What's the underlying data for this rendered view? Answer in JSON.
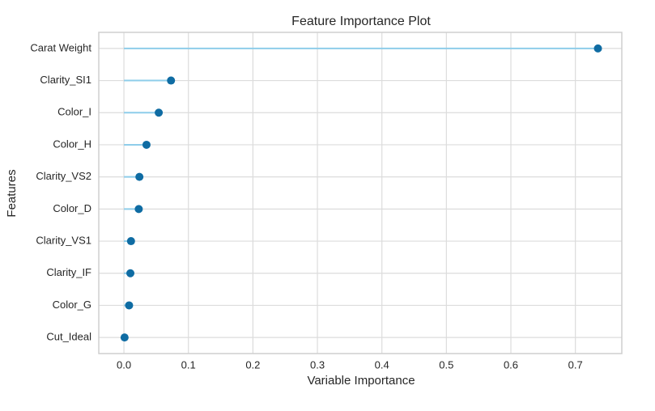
{
  "chart_data": {
    "type": "lollipop",
    "orientation": "horizontal",
    "title": "Feature Importance Plot",
    "x_label": "Variable Importance",
    "y_label": "Features",
    "categories": [
      "Carat Weight",
      "Clarity_SI1",
      "Color_I",
      "Color_H",
      "Clarity_VS2",
      "Color_D",
      "Clarity_VS1",
      "Clarity_IF",
      "Color_G",
      "Cut_Ideal"
    ],
    "values": [
      0.735,
      0.073,
      0.054,
      0.035,
      0.024,
      0.023,
      0.011,
      0.01,
      0.008,
      0.001
    ],
    "color": "#0f6ca3",
    "stem_color": "#8ecdea",
    "xlim": [
      -0.039,
      0.772
    ],
    "xticks": [
      {
        "value": 0,
        "label": "0.0"
      },
      0.1,
      0.2,
      0.3,
      0.4,
      0.5,
      0.6,
      0.7
    ],
    "grid": true
  }
}
